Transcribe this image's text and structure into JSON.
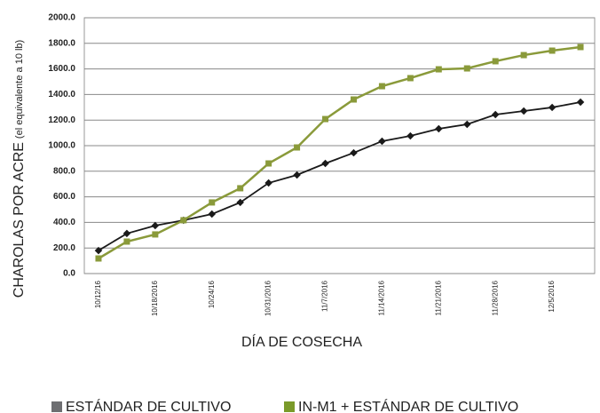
{
  "chart_data": {
    "type": "line",
    "y_label": "CHAROLAS POR ACRE",
    "y_label_note": "(el equivalente a 10 lb)",
    "x_label": "DÍA DE COSECHA",
    "categories": [
      "10/12/16",
      null,
      "10/18/2016",
      null,
      "10/24/16",
      null,
      "10/31/2016",
      null,
      "11/7/2016",
      null,
      "11/14/2016",
      null,
      "11/21/2016",
      null,
      "11/28/2016",
      null,
      "12/5/2016",
      null
    ],
    "series": [
      {
        "name": "ESTÁNDAR DE CULTIVO",
        "color": "#1a1a1a",
        "legend_color": "#6d6e71",
        "values": [
          180,
          313,
          375,
          417,
          465,
          556,
          708,
          771,
          861,
          944,
          1035,
          1076,
          1132,
          1167,
          1243,
          1271,
          1299,
          1340
        ]
      },
      {
        "name": "IN-M1 + ESTÁNDAR DE CULTIVO",
        "color": "#8a9a3a",
        "legend_color": "#7a9a2a",
        "values": [
          118,
          250,
          306,
          417,
          556,
          667,
          861,
          986,
          1208,
          1361,
          1465,
          1528,
          1597,
          1604,
          1660,
          1708,
          1743,
          1771
        ]
      }
    ],
    "ylim": [
      0,
      2000
    ],
    "yticks": [
      {
        "value": 0,
        "label": "0.0"
      },
      {
        "value": 200,
        "label": "200.0"
      },
      {
        "value": 400,
        "label": "400.0"
      },
      {
        "value": 600,
        "label": "600.0"
      },
      {
        "value": 800,
        "label": "800.0"
      },
      {
        "value": 1000,
        "label": "1000.0"
      },
      {
        "value": 1200,
        "label": "1200.0"
      },
      {
        "value": 1400,
        "label": "1400.0"
      },
      {
        "value": 1600,
        "label": "1600.0"
      },
      {
        "value": 1800,
        "label": "1800.0"
      },
      {
        "value": 2000,
        "label": "2000.0"
      }
    ],
    "grid": true
  }
}
